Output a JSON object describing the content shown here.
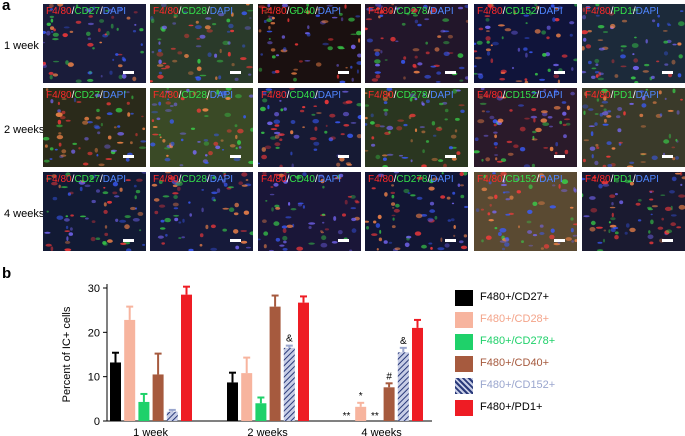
{
  "figure": {
    "panel_a_letter": "a",
    "panel_b_letter": "b",
    "row_labels": [
      "1 week",
      "2 weeks",
      "4 weeks"
    ],
    "tile_labels": [
      {
        "marker": "CD27"
      },
      {
        "marker": "CD28"
      },
      {
        "marker": "CD40"
      },
      {
        "marker": "CD278"
      },
      {
        "marker": "CD152"
      },
      {
        "marker": "PD1"
      }
    ],
    "label_prefix": "F4/80",
    "label_sep": "/",
    "label_suffix": "DAPI",
    "colors": {
      "red_channel": "#ff2a2a",
      "green_channel": "#33e04a",
      "blue_channel": "#4f86ff"
    }
  },
  "chart_data": {
    "type": "bar",
    "ylabel": "Percent of IC+ cells",
    "xlabel": "",
    "ylim": [
      0,
      30
    ],
    "yticks": [
      0,
      10,
      20,
      30
    ],
    "categories": [
      "1 week",
      "2 weeks",
      "4 weeks"
    ],
    "grid": false,
    "legend_position": "right",
    "series": [
      {
        "name": "F480+/CD27+",
        "color": "#000000",
        "text_color": "#000000",
        "hatch": false,
        "values": [
          13.2,
          8.7,
          0
        ],
        "errors": [
          2.2,
          2.2,
          0
        ],
        "marks": [
          "",
          "",
          "**"
        ]
      },
      {
        "name": "F480+/CD28+",
        "color": "#f7b49e",
        "text_color": "#f4a48a",
        "hatch": false,
        "values": [
          22.8,
          10.8,
          3.2
        ],
        "errors": [
          3.0,
          3.5,
          0.9
        ],
        "marks": [
          "",
          "",
          "*"
        ]
      },
      {
        "name": "F480+/CD278+",
        "color": "#1fd16a",
        "text_color": "#1fd16a",
        "hatch": false,
        "values": [
          4.3,
          4.0,
          0
        ],
        "errors": [
          1.8,
          1.3,
          0
        ],
        "marks": [
          "",
          "",
          "**"
        ]
      },
      {
        "name": "F480+/CD40+",
        "color": "#a65a3e",
        "text_color": "#a65a3e",
        "hatch": false,
        "values": [
          10.5,
          25.8,
          7.6
        ],
        "errors": [
          4.7,
          2.5,
          0.9
        ],
        "marks": [
          "",
          "",
          "#"
        ]
      },
      {
        "name": "F480+/CD152+",
        "color": "#9aa6ce",
        "text_color": "#9aa6ce",
        "hatch": true,
        "values": [
          2.1,
          16.5,
          15.5
        ],
        "errors": [
          0.4,
          0.5,
          1.0
        ],
        "marks": [
          "",
          "&",
          "&"
        ]
      },
      {
        "name": "F480+/PD1+",
        "color": "#ee1c24",
        "text_color": "#000000",
        "hatch": false,
        "values": [
          28.5,
          26.7,
          21.0
        ],
        "errors": [
          1.8,
          1.4,
          1.8
        ],
        "marks": [
          "",
          "",
          ""
        ]
      }
    ]
  }
}
